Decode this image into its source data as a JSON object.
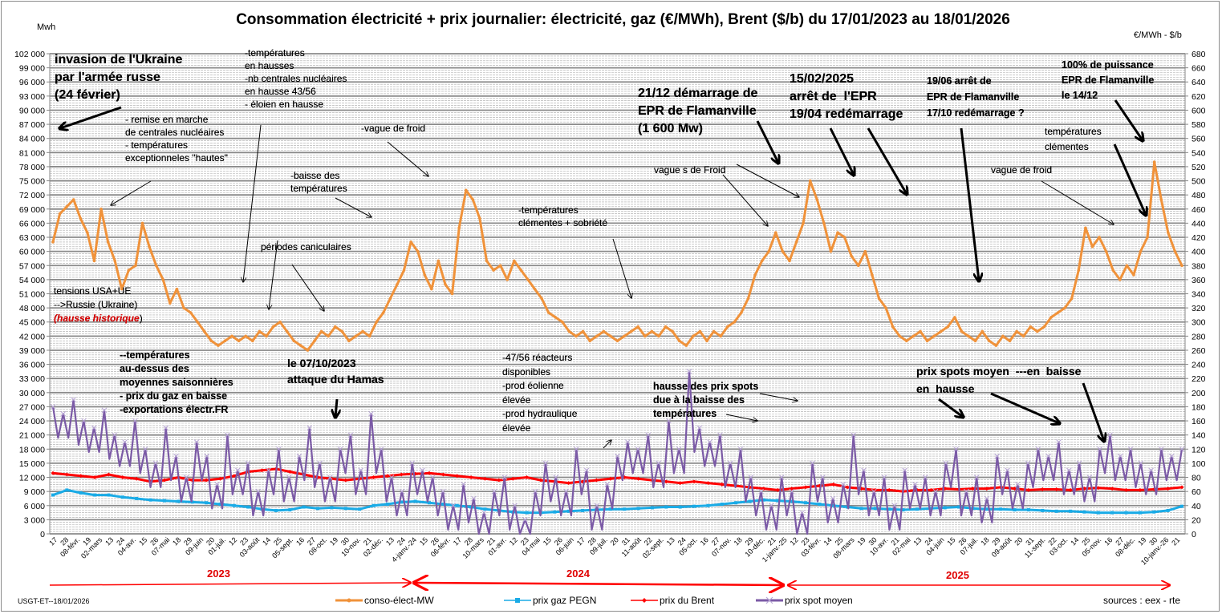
{
  "header": {
    "title": "Consommation électricité + prix journalier: électricité, gaz (€/MWh), Brent ($/b) du 17/01/2023 au 18/01/2026",
    "unit_left": "Mwh",
    "unit_right": "€/MWh - $/b"
  },
  "footer": {
    "author_date": "USGT-ET--18/01/2026",
    "sources": "sources : eex - rte"
  },
  "years": [
    "2023",
    "2024",
    "2025"
  ],
  "colors": {
    "conso": "#f0923a",
    "gaz": "#1aabe6",
    "brent": "#ff0000",
    "spot": "#7b5aa6",
    "grid": "#8a8a8a",
    "year_arrow": "#ff0000"
  },
  "legend": [
    {
      "key": "conso",
      "label": "conso-élect-MW"
    },
    {
      "key": "gaz",
      "label": "prix gaz PEGN"
    },
    {
      "key": "brent",
      "label": "prix du Brent"
    },
    {
      "key": "spot",
      "label": "prix spot moyen"
    }
  ],
  "annotations": {
    "ukraine": "invasion de l'Ukraine\npar l'armée russe\n(24 février)",
    "remise": "- remise en marche\nde centrales nucléaires\n- températures\nexceptionneles \"hautes\"",
    "temp_hausse": "-températures\nen hausses\n-nb centrales nucléaires\nen hausse 43/56\n- éloien en hausse",
    "vague_froid_1": "-vague de froid",
    "baisse_temp": "-baisse des\ntempératures",
    "caniculaires": "périodes caniculaires",
    "tensions_1": "tensions USA+UE\n-->Russie (Ukraine)",
    "tensions_2": "(hausse historique",
    "tensions_3": ")",
    "temp_dessus": "--températures\nau-dessus des\nmoyennes saisonnières\n- prix du gaz en baisse\n-exportations électr.FR",
    "hamas": "le 07/10/2023\nattaque du Hamas",
    "clementes_sobriete": "-températures\nclémentes + sobriété",
    "reacteurs": "-47/56 réacteurs\ndisponibles\n-prod éolienne\nélevée\n-prod hydraulique\nélevée",
    "epr_start": "21/12 démarrage de\nEPR de Flamanville\n(1 600 Mw)",
    "epr_stop": "15/02/2025\narrêt de  l'EPR\n19/04 redémarrage",
    "epr_stop2": "19/06 arrêt de\nEPR de Flamanville\n17/10 redémarrage ?",
    "epr_full": "100% de puissance\nEPR de Flamanville\nle 14/12",
    "vagues_froid": "vague s de Froid",
    "hausse_spots": "hausse des prix spots\ndue à la baisse des\ntempératures",
    "prix_spots": "prix spots moyen  ---en  baisse\nen  hausse",
    "temp_clementes": "températures\nclémentes",
    "vague_froid_2": "vague de froid"
  },
  "chart_data": {
    "type": "line",
    "title": "Consommation électricité + prix journalier: électricité, gaz (€/MWh), Brent ($/b) du 17/01/2023 au 18/01/2026",
    "ylabel_left": "Mwh",
    "ylabel_right": "€/MWh - $/b",
    "ylim_left": [
      0,
      102000
    ],
    "ylim_right": [
      0,
      680
    ],
    "yticks_left": [
      "102 000",
      "99 000",
      "96 000",
      "93 000",
      "90 000",
      "87 000",
      "84 000",
      "81 000",
      "78 000",
      "75 000",
      "72 000",
      "69 000",
      "66 000",
      "63 000",
      "60 000",
      "57 000",
      "54 000",
      "51 000",
      "48 000",
      "45 000",
      "42 000",
      "39 000",
      "36 000",
      "33 000",
      "30 000",
      "27 000",
      "24 000",
      "21 000",
      "18 000",
      "15 000",
      "12 000",
      "9 000",
      "6 000",
      "3 000",
      "0"
    ],
    "yticks_right": [
      "680",
      "660",
      "640",
      "620",
      "600",
      "580",
      "560",
      "540",
      "520",
      "500",
      "480",
      "460",
      "440",
      "420",
      "400",
      "380",
      "360",
      "340",
      "320",
      "300",
      "280",
      "260",
      "240",
      "220",
      "200",
      "180",
      "160",
      "140",
      "120",
      "100",
      "80",
      "60",
      "40",
      "20",
      "0"
    ],
    "grid": true,
    "legend_position": "bottom",
    "x_tick_labels": [
      "17",
      "28",
      "08-févr.",
      "19",
      "02-mars",
      "13",
      "24",
      "04-avr.",
      "15",
      "26",
      "07-mai",
      "18",
      "29",
      "09-juin",
      "20",
      "01-juil.",
      "12",
      "23",
      "03-août",
      "14",
      "25",
      "05-sept.",
      "16",
      "27",
      "08-oct.",
      "19",
      "30",
      "10-nov.",
      "21",
      "02-déc.",
      "13",
      "24",
      "4-janv.-24",
      "15",
      "26",
      "06-févr.",
      "17",
      "28",
      "10-mars",
      "21",
      "01-avr.",
      "12",
      "23",
      "04-mai",
      "15",
      "26",
      "06-juin",
      "17",
      "28",
      "09-juil.",
      "20",
      "31",
      "11-août",
      "22",
      "02-sept.",
      "13",
      "24",
      "05-oct.",
      "16",
      "27",
      "07-nov.",
      "18",
      "29",
      "10-déc.",
      "21",
      "1-janv.-25",
      "12",
      "23",
      "03-févr.",
      "14",
      "25",
      "08-mars",
      "19",
      "30",
      "10-avr.",
      "21",
      "02-mai",
      "13",
      "24",
      "04-juin",
      "15",
      "26",
      "07-juil.",
      "18",
      "29",
      "09-août",
      "20",
      "31",
      "11-sept.",
      "22",
      "03-oct.",
      "14",
      "25",
      "05-nov.",
      "16",
      "27",
      "08-déc.",
      "19",
      "30",
      "10-janv.-26",
      "21"
    ],
    "x_start": "17/01/2023",
    "x_end": "18/01/2026",
    "series": [
      {
        "name": "conso-élect-MW",
        "axis": "left",
        "unit": "MWh",
        "values": [
          62000,
          68000,
          69500,
          71000,
          67000,
          64000,
          58000,
          69000,
          62000,
          58000,
          52000,
          56000,
          57000,
          66000,
          61000,
          57000,
          54000,
          49000,
          52000,
          48000,
          47000,
          45000,
          43000,
          41000,
          40000,
          41000,
          42000,
          41000,
          42000,
          41000,
          43000,
          42000,
          44000,
          45000,
          43000,
          41000,
          40000,
          39000,
          41000,
          43000,
          42000,
          44000,
          43000,
          41000,
          42000,
          43000,
          42000,
          45000,
          47000,
          50000,
          53000,
          56000,
          62000,
          60000,
          55000,
          52000,
          58000,
          53000,
          51000,
          65000,
          73000,
          71000,
          67000,
          58000,
          56000,
          57000,
          54000,
          58000,
          56000,
          54000,
          52000,
          50000,
          47000,
          46000,
          45000,
          43000,
          42000,
          43000,
          41000,
          42000,
          43000,
          42000,
          41000,
          42000,
          43000,
          44000,
          42000,
          43000,
          42000,
          44000,
          43000,
          41000,
          40000,
          42000,
          43000,
          41000,
          43000,
          42000,
          44000,
          45000,
          47000,
          50000,
          55000,
          58000,
          60000,
          64000,
          60000,
          58000,
          62000,
          66000,
          75000,
          71000,
          66000,
          60000,
          64000,
          63000,
          59000,
          57000,
          60000,
          55000,
          50000,
          48000,
          44000,
          42000,
          41000,
          42000,
          43000,
          41000,
          42000,
          43000,
          44000,
          46000,
          43000,
          42000,
          41000,
          43000,
          41000,
          40000,
          42000,
          41000,
          43000,
          42000,
          44000,
          43000,
          44000,
          46000,
          47000,
          48000,
          50000,
          56000,
          65000,
          61000,
          63000,
          60000,
          56000,
          54000,
          57000,
          55000,
          60000,
          63000,
          79000,
          71000,
          64000,
          60000,
          57000
        ]
      },
      {
        "name": "prix gaz PEGN",
        "axis": "right",
        "unit": "€/MWh",
        "values": [
          55,
          62,
          58,
          55,
          55,
          52,
          50,
          48,
          47,
          46,
          45,
          44,
          42,
          40,
          38,
          35,
          33,
          34,
          38,
          36,
          37,
          36,
          35,
          40,
          42,
          45,
          46,
          44,
          42,
          40,
          38,
          35,
          33,
          31,
          30,
          30,
          31,
          32,
          33,
          34,
          35,
          35,
          36,
          37,
          38,
          38,
          39,
          40,
          42,
          44,
          46,
          48,
          47,
          46,
          44,
          42,
          40,
          38,
          36,
          36,
          35,
          34,
          35,
          36,
          37,
          38,
          36,
          35,
          35,
          34,
          34,
          33,
          32,
          32,
          31,
          30,
          30,
          30,
          30,
          31,
          33,
          39
        ],
        "x_span": "full"
      },
      {
        "name": "prix du Brent",
        "axis": "right",
        "unit": "$/b",
        "values": [
          86,
          84,
          82,
          80,
          84,
          80,
          78,
          74,
          76,
          80,
          76,
          76,
          78,
          82,
          88,
          90,
          92,
          88,
          84,
          80,
          78,
          76,
          78,
          80,
          82,
          84,
          85,
          86,
          84,
          82,
          80,
          78,
          76,
          78,
          80,
          76,
          74,
          72,
          74,
          76,
          78,
          80,
          78,
          76,
          74,
          72,
          74,
          72,
          70,
          68,
          66,
          64,
          62,
          64,
          66,
          68,
          70,
          66,
          64,
          62,
          62,
          60,
          62,
          62,
          64,
          63,
          64,
          64,
          66,
          64,
          62,
          63,
          63,
          62,
          64,
          65,
          64,
          62,
          62,
          63,
          64,
          66
        ],
        "x_span": "full"
      },
      {
        "name": "prix spot moyen",
        "axis": "right",
        "unit": "€/MWh",
        "values": [
          180,
          170,
          190,
          160,
          150,
          175,
          140,
          130,
          160,
          120,
          100,
          150,
          110,
          80,
          130,
          110,
          70,
          140,
          90,
          100,
          60,
          90,
          120,
          80,
          110,
          150,
          100,
          80,
          120,
          140,
          90,
          170,
          120,
          80,
          60,
          100,
          90,
          80,
          60,
          40,
          70,
          50,
          30,
          60,
          80,
          40,
          20,
          60,
          100,
          80,
          60,
          120,
          90,
          40,
          70,
          110,
          130,
          120,
          140,
          100,
          160,
          120,
          230,
          150,
          130,
          140,
          100,
          120,
          80,
          60,
          40,
          80,
          60,
          30,
          100,
          80,
          50,
          70,
          140,
          90,
          60,
          80,
          40,
          90,
          70,
          80,
          60,
          100,
          120,
          60,
          80,
          50,
          110,
          90,
          70,
          100,
          120,
          110,
          130,
          90,
          100,
          80,
          120,
          140,
          110,
          120,
          100,
          90,
          120,
          110,
          120
        ],
        "x_span": "full"
      }
    ]
  }
}
